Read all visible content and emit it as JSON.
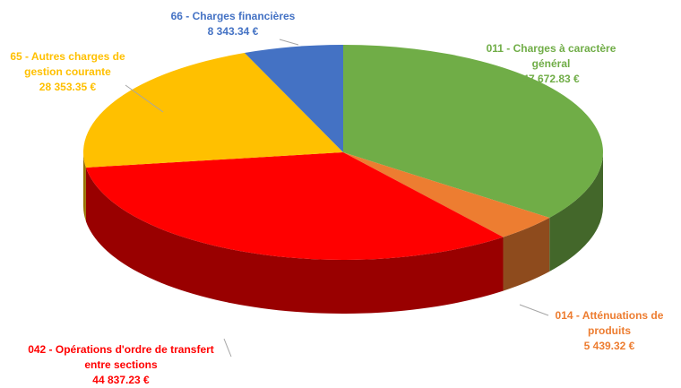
{
  "chart_data": {
    "type": "pie3d",
    "categories": [
      "011 - Charges à caractère général",
      "014 - Atténuations de produits",
      "042 - Opérations d'ordre de transfert entre sections",
      "65 - Autres charges de gestion courante",
      "66 - Charges financières"
    ],
    "values": [
      47672.83,
      5439.32,
      44837.23,
      28353.35,
      8343.34
    ],
    "value_labels": [
      "47 672.83 €",
      "5 439.32 €",
      "44 837.23 €",
      "28 353.35 €",
      "8 343.34 €"
    ],
    "colors": [
      "#70ad47",
      "#ed7d31",
      "#ff0000",
      "#ffc000",
      "#4472c4"
    ]
  }
}
